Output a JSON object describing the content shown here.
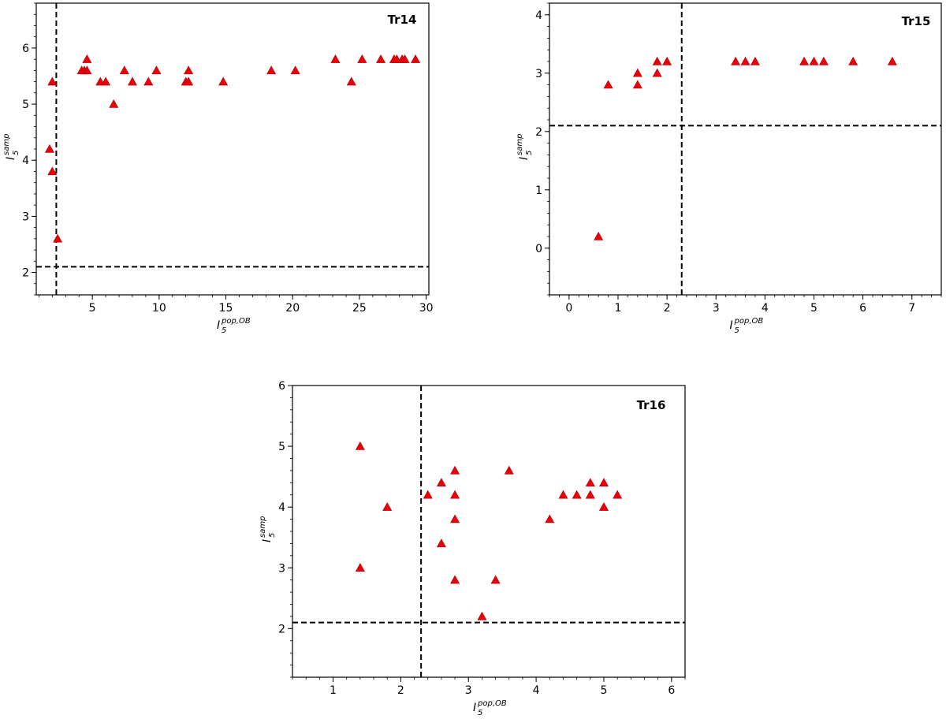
{
  "colors": {
    "marker": "#e8000b",
    "frame": "#000000",
    "threshold": "#000000"
  },
  "chart_data": [
    {
      "type": "scatter",
      "title": "Tr14",
      "xlabel": {
        "base": "I",
        "sup": "pop,OB",
        "sub": "5"
      },
      "ylabel": {
        "base": "I",
        "sup": "samp",
        "sub": "5"
      },
      "xlim": [
        0.8,
        30.2
      ],
      "ylim": [
        1.6,
        6.8
      ],
      "xticks": [
        5,
        10,
        15,
        20,
        25,
        30
      ],
      "yticks": [
        2,
        3,
        4,
        5,
        6
      ],
      "xminor": 1,
      "yminor": 0.2,
      "thresholds": {
        "x": 2.3,
        "y": 2.1
      },
      "marker": "triangle",
      "points": [
        [
          1.8,
          4.2
        ],
        [
          2.0,
          5.4
        ],
        [
          2.0,
          3.8
        ],
        [
          2.4,
          2.6
        ],
        [
          4.2,
          5.6
        ],
        [
          4.4,
          5.6
        ],
        [
          4.6,
          5.6
        ],
        [
          4.6,
          5.8
        ],
        [
          5.6,
          5.4
        ],
        [
          6.0,
          5.4
        ],
        [
          6.6,
          5.0
        ],
        [
          7.4,
          5.6
        ],
        [
          8.0,
          5.4
        ],
        [
          9.2,
          5.4
        ],
        [
          9.8,
          5.6
        ],
        [
          12.0,
          5.4
        ],
        [
          12.2,
          5.4
        ],
        [
          12.2,
          5.6
        ],
        [
          14.8,
          5.4
        ],
        [
          18.4,
          5.6
        ],
        [
          20.2,
          5.6
        ],
        [
          23.2,
          5.8
        ],
        [
          24.4,
          5.4
        ],
        [
          25.2,
          5.8
        ],
        [
          26.6,
          5.8
        ],
        [
          27.6,
          5.8
        ],
        [
          27.8,
          5.8
        ],
        [
          28.2,
          5.8
        ],
        [
          28.4,
          5.8
        ],
        [
          29.2,
          5.8
        ]
      ]
    },
    {
      "type": "scatter",
      "title": "Tr15",
      "xlabel": {
        "base": "I",
        "sup": "pop,OB",
        "sub": "5"
      },
      "ylabel": {
        "base": "I",
        "sup": "samp",
        "sub": "5"
      },
      "xlim": [
        -0.4,
        7.6
      ],
      "ylim": [
        -0.8,
        4.2
      ],
      "xticks": [
        0,
        1,
        2,
        3,
        4,
        5,
        6,
        7
      ],
      "yticks": [
        0,
        1,
        2,
        3,
        4
      ],
      "xminor": 0.2,
      "yminor": 0.2,
      "thresholds": {
        "x": 2.3,
        "y": 2.1
      },
      "marker": "triangle",
      "points": [
        [
          0.6,
          0.2
        ],
        [
          0.8,
          2.8
        ],
        [
          1.4,
          3.0
        ],
        [
          1.4,
          2.8
        ],
        [
          1.8,
          3.2
        ],
        [
          1.8,
          3.0
        ],
        [
          2.0,
          3.2
        ],
        [
          3.4,
          3.2
        ],
        [
          3.6,
          3.2
        ],
        [
          3.8,
          3.2
        ],
        [
          4.8,
          3.2
        ],
        [
          5.0,
          3.2
        ],
        [
          5.2,
          3.2
        ],
        [
          5.8,
          3.2
        ],
        [
          6.6,
          3.2
        ]
      ]
    },
    {
      "type": "scatter",
      "title": "Tr16",
      "xlabel": {
        "base": "I",
        "sup": "pop,OB",
        "sub": "5"
      },
      "ylabel": {
        "base": "I",
        "sup": "samp",
        "sub": "5"
      },
      "xlim": [
        0.4,
        6.2
      ],
      "ylim": [
        1.2,
        6.0
      ],
      "xticks": [
        1,
        2,
        3,
        4,
        5,
        6
      ],
      "yticks": [
        2,
        3,
        4,
        5,
        6
      ],
      "xminor": 0.2,
      "yminor": 0.2,
      "thresholds": {
        "x": 2.3,
        "y": 2.1
      },
      "marker": "triangle",
      "points": [
        [
          1.4,
          5.0
        ],
        [
          1.4,
          3.0
        ],
        [
          1.8,
          4.0
        ],
        [
          2.4,
          4.2
        ],
        [
          2.6,
          4.4
        ],
        [
          2.6,
          3.4
        ],
        [
          2.8,
          4.6
        ],
        [
          2.8,
          4.2
        ],
        [
          2.8,
          3.8
        ],
        [
          2.8,
          2.8
        ],
        [
          3.2,
          2.2
        ],
        [
          3.4,
          2.8
        ],
        [
          3.6,
          4.6
        ],
        [
          4.2,
          3.8
        ],
        [
          4.4,
          4.2
        ],
        [
          4.6,
          4.2
        ],
        [
          4.8,
          4.4
        ],
        [
          4.8,
          4.2
        ],
        [
          5.0,
          4.4
        ],
        [
          5.0,
          4.0
        ],
        [
          5.2,
          4.2
        ]
      ]
    }
  ]
}
